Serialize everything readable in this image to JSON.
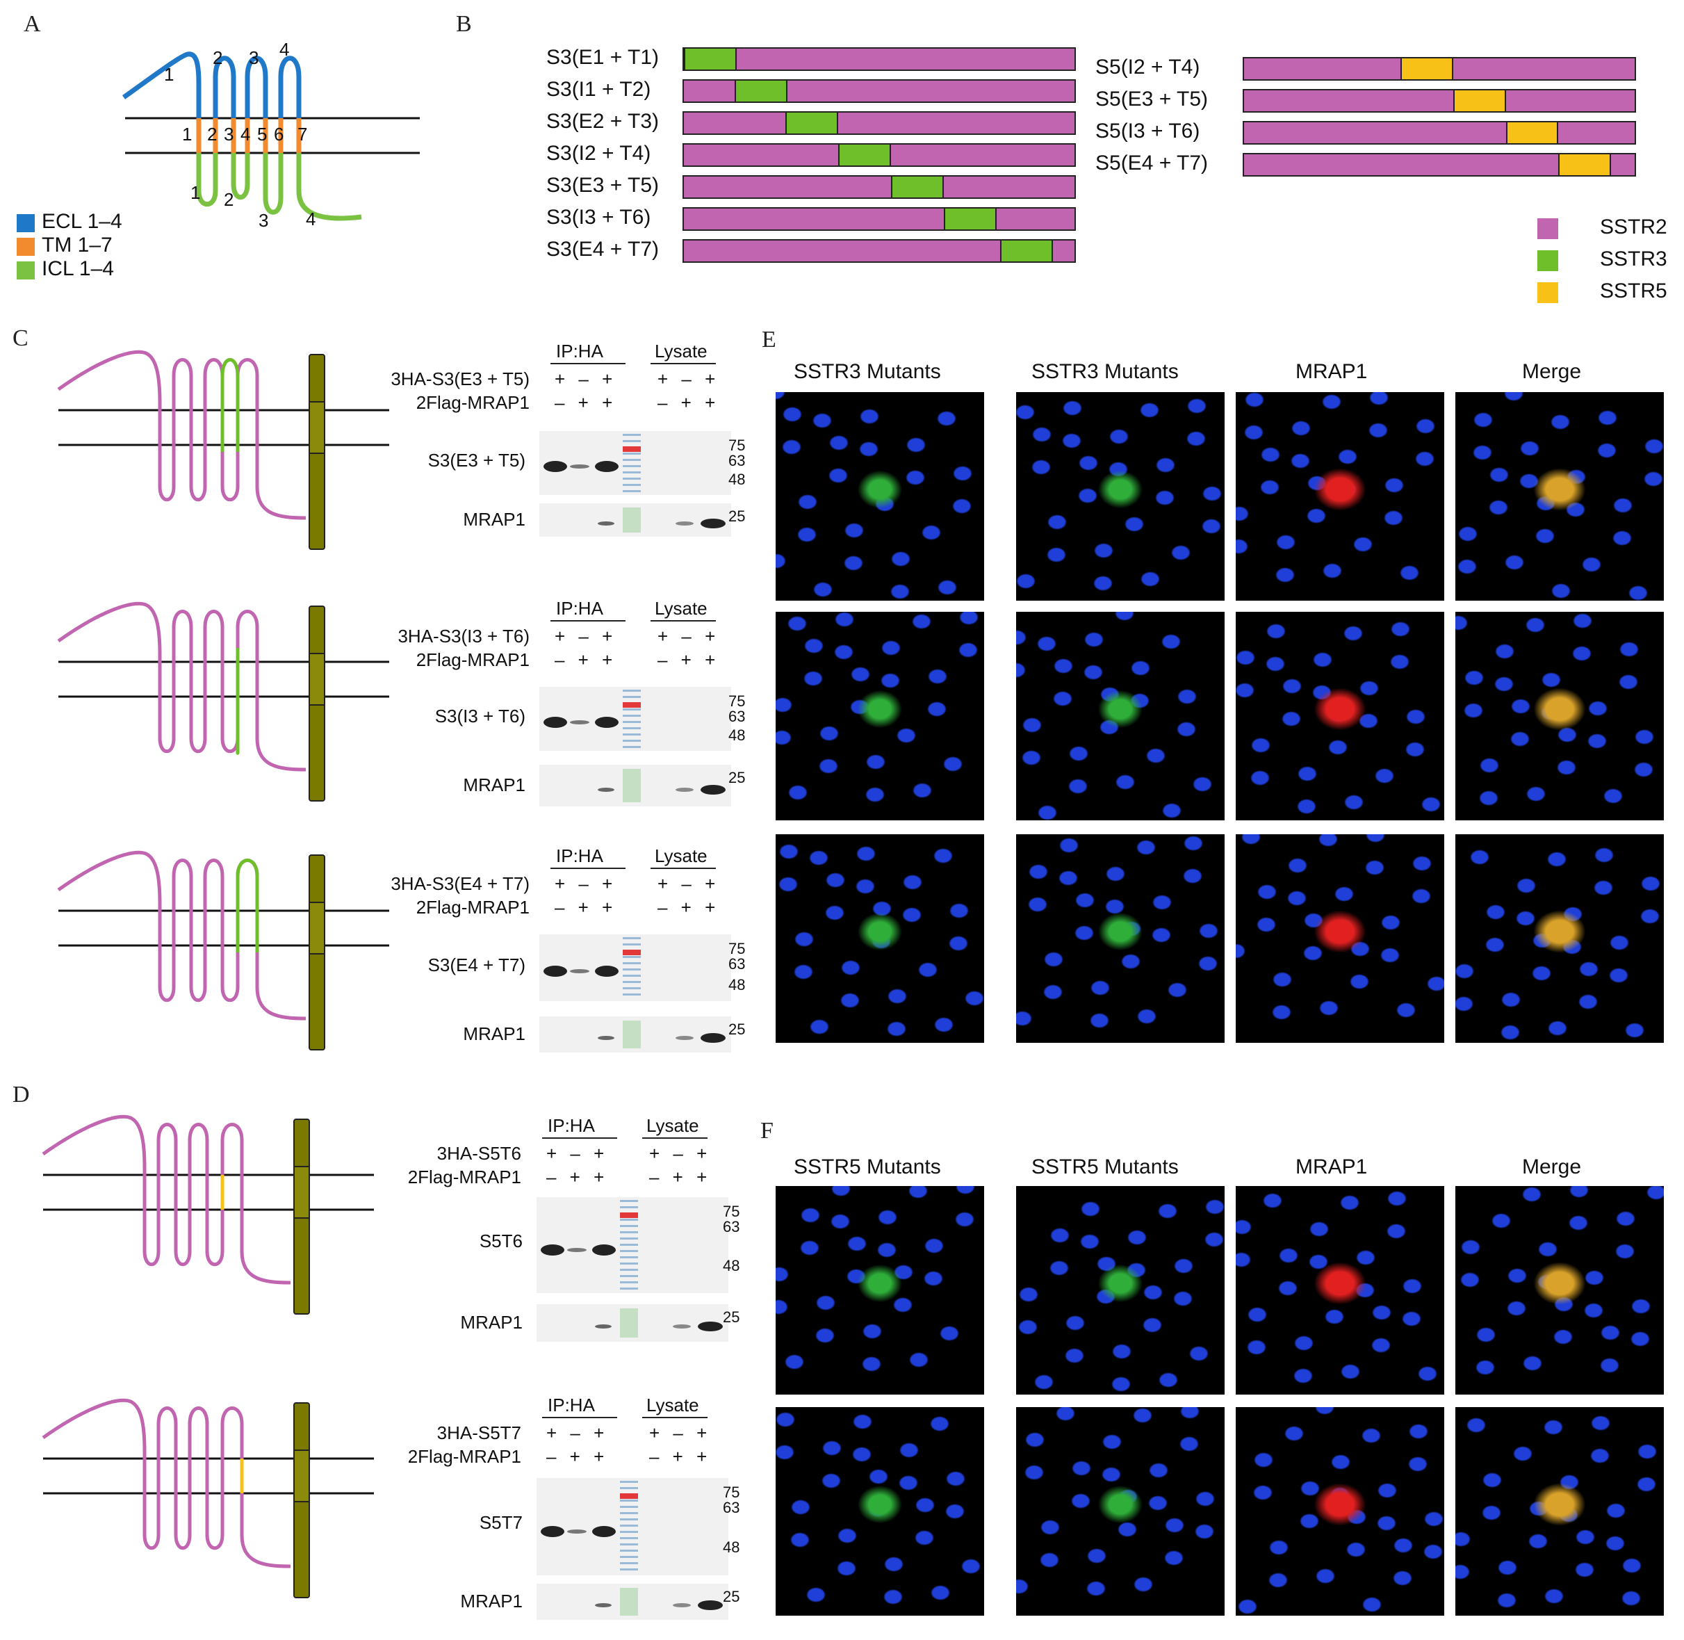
{
  "panels": {
    "A": "A",
    "B": "B",
    "C": "C",
    "D": "D",
    "E": "E",
    "F": "F"
  },
  "panelA": {
    "ecl_numbers": [
      "1",
      "2",
      "3",
      "4"
    ],
    "tm_numbers": [
      "1",
      "2",
      "3",
      "4",
      "5",
      "6",
      "7"
    ],
    "icl_numbers": [
      "1",
      "2",
      "3",
      "4"
    ],
    "legend": [
      {
        "label": "ECL 1–4",
        "color": "#1f78c8"
      },
      {
        "label": "TM  1–7",
        "color": "#f28a2e"
      },
      {
        "label": "ICL  1–4",
        "color": "#7cc242"
      }
    ]
  },
  "panelB": {
    "colors": {
      "SSTR2": "#c165b1",
      "SSTR3": "#6fbf2a",
      "SSTR5": "#f7c117"
    },
    "left_rows": [
      {
        "label": "S3(E1 + T1)",
        "start": 0.0,
        "end": 0.135
      },
      {
        "label": "S3(I1 + T2)",
        "start": 0.13,
        "end": 0.265
      },
      {
        "label": "S3(E2 + T3)",
        "start": 0.26,
        "end": 0.395
      },
      {
        "label": "S3(I2 + T4)",
        "start": 0.395,
        "end": 0.53
      },
      {
        "label": "S3(E3 + T5)",
        "start": 0.53,
        "end": 0.665
      },
      {
        "label": "S3(I3 + T6)",
        "start": 0.665,
        "end": 0.8
      },
      {
        "label": "S3(E4 + T7)",
        "start": 0.81,
        "end": 0.945
      }
    ],
    "right_rows": [
      {
        "label": "S5(I2 + T4)",
        "start": 0.4,
        "end": 0.535
      },
      {
        "label": "S5(E3 + T5)",
        "start": 0.535,
        "end": 0.67
      },
      {
        "label": "S5(I3 + T6)",
        "start": 0.67,
        "end": 0.805
      },
      {
        "label": "S5(E4 + T7)",
        "start": 0.805,
        "end": 0.94
      }
    ],
    "legend": [
      {
        "label": "SSTR2",
        "color": "#c165b1"
      },
      {
        "label": "SSTR3",
        "color": "#6fbf2a"
      },
      {
        "label": "SSTR5",
        "color": "#f7c117"
      }
    ]
  },
  "blots": [
    {
      "ip": "IP:HA",
      "lysate": "Lysate",
      "construct": "3HA-S3(E3 + T5)",
      "partner": "2Flag-MRAP1",
      "row1": "+ – +",
      "row2": "– + +",
      "lys1": "+ – +",
      "lys2": "– + +",
      "band1": "S3(E3 + T5)",
      "band2": "MRAP1",
      "markers_top": [
        "75",
        "63",
        "48"
      ],
      "marker_bottom": "25"
    },
    {
      "ip": "IP:HA",
      "lysate": "Lysate",
      "construct": "3HA-S3(I3 + T6)",
      "partner": "2Flag-MRAP1",
      "row1": "+ – +",
      "row2": "– + +",
      "lys1": "+ – +",
      "lys2": "– + +",
      "band1": "S3(I3 + T6)",
      "band2": "MRAP1",
      "markers_top": [
        "75",
        "63",
        "48"
      ],
      "marker_bottom": "25"
    },
    {
      "ip": "IP:HA",
      "lysate": "Lysate",
      "construct": "3HA-S3(E4 + T7)",
      "partner": "2Flag-MRAP1",
      "row1": "+ – +",
      "row2": "– + +",
      "lys1": "+ – +",
      "lys2": "– + +",
      "band1": "S3(E4 + T7)",
      "band2": "MRAP1",
      "markers_top": [
        "75",
        "63",
        "48"
      ],
      "marker_bottom": "25"
    },
    {
      "ip": "IP:HA",
      "lysate": "Lysate",
      "construct": "3HA-S5T6",
      "partner": "2Flag-MRAP1",
      "row1": "+ – +",
      "row2": "– + +",
      "lys1": "+ – +",
      "lys2": "– + +",
      "band1": "S5T6",
      "band2": "MRAP1",
      "markers_top": [
        "75",
        "63",
        "48"
      ],
      "marker_bottom": "25"
    },
    {
      "ip": "IP:HA",
      "lysate": "Lysate",
      "construct": "3HA-S5T7",
      "partner": "2Flag-MRAP1",
      "row1": "+ – +",
      "row2": "– + +",
      "lys1": "+ – +",
      "lys2": "– + +",
      "band1": "S5T7",
      "band2": "MRAP1",
      "markers_top": [
        "75",
        "63",
        "48"
      ],
      "marker_bottom": "25"
    }
  ],
  "panelE": {
    "headers": [
      "SSTR3 Mutants",
      "SSTR3 Mutants",
      "MRAP1",
      "Merge"
    ]
  },
  "panelF": {
    "headers": [
      "SSTR5 Mutants",
      "SSTR5 Mutants",
      "MRAP1",
      "Merge"
    ]
  }
}
